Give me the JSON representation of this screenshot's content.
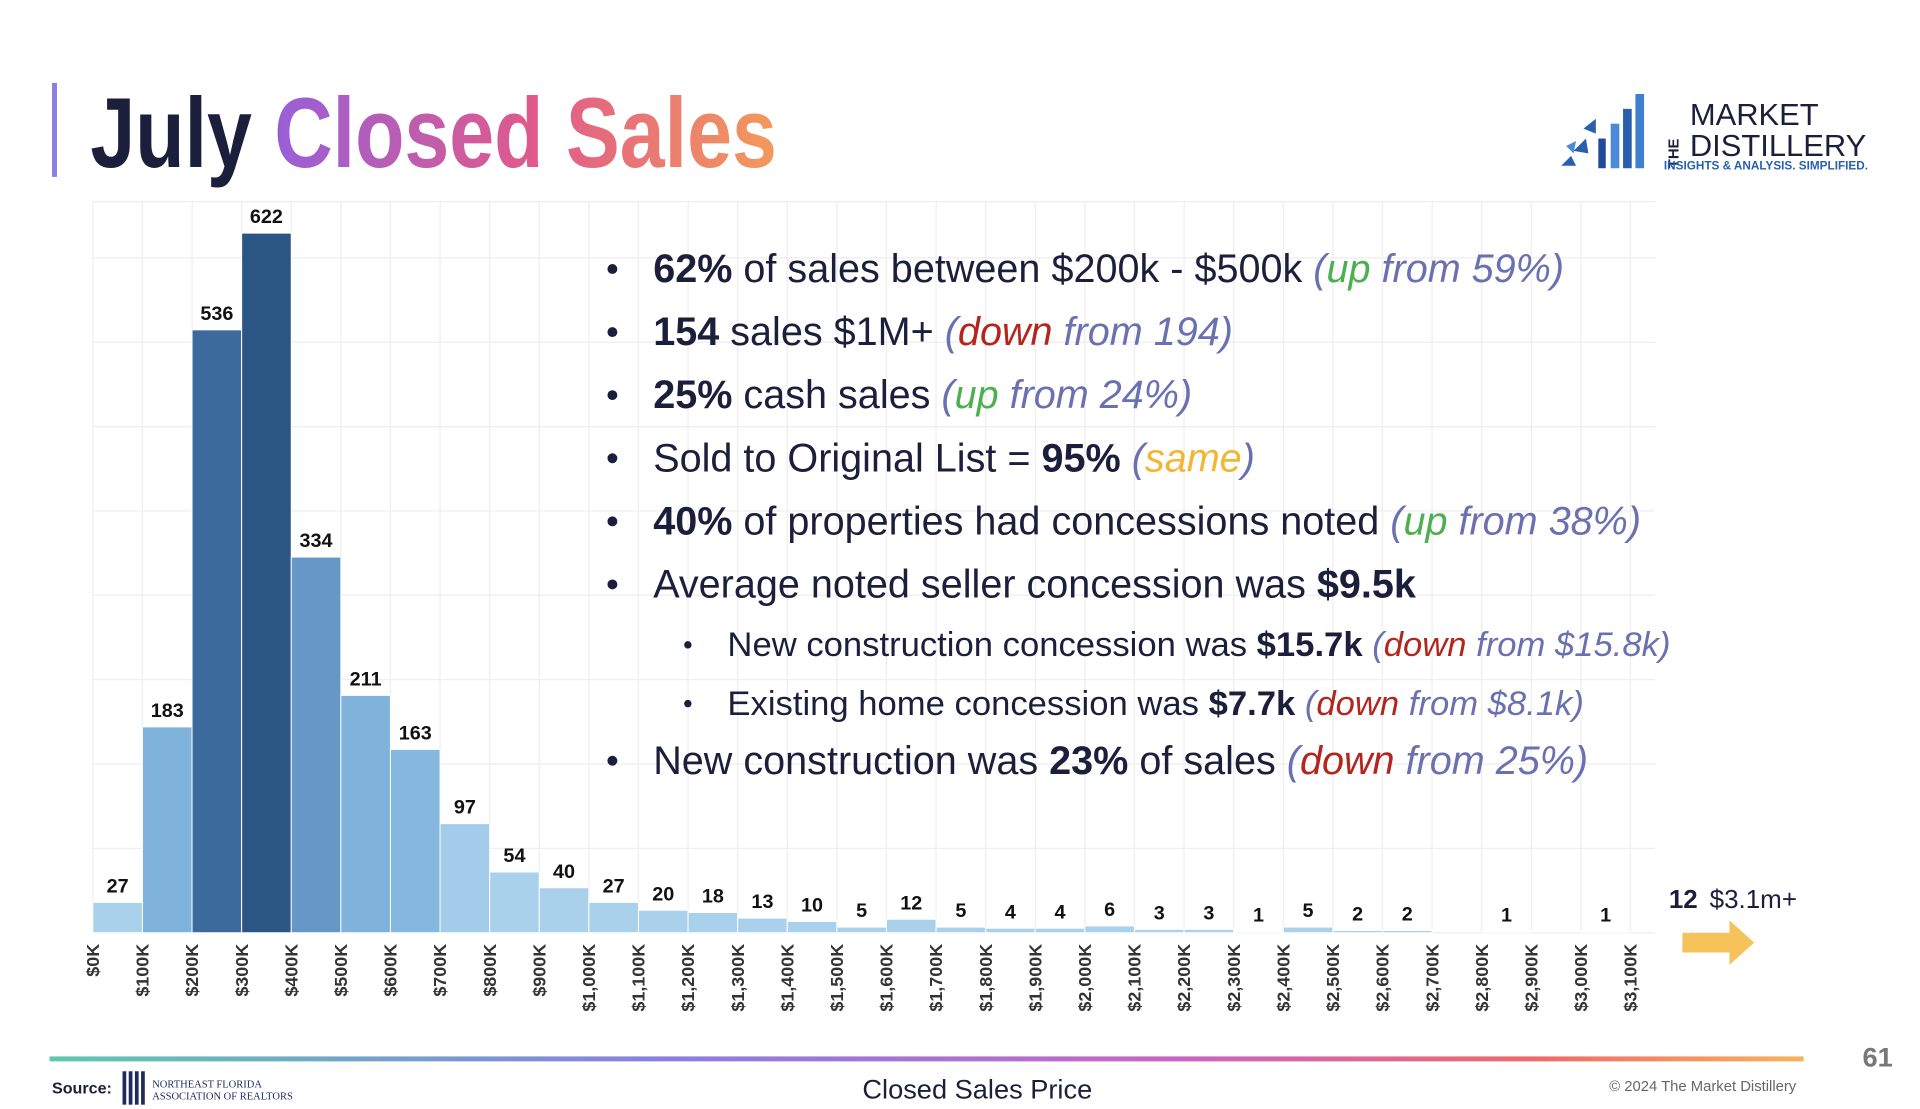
{
  "title": "July Closed Sales",
  "logo": {
    "the": "THE",
    "line1": "MARKET",
    "line2": "DISTILLERY",
    "tagline": "INSIGHTS & ANALYSIS. SIMPLIFIED."
  },
  "chart_data": {
    "type": "histogram",
    "x_label": "Closed Sales Price",
    "bins": [
      0,
      100,
      200,
      300,
      400,
      500,
      600,
      700,
      800,
      900,
      1000,
      1100,
      1200,
      1300,
      1400,
      1500,
      1600,
      1700,
      1800,
      1900,
      2000,
      2100,
      2200,
      2300,
      2400,
      2500,
      2600,
      2700,
      2800,
      2900,
      3000,
      3100
    ],
    "values": [
      27,
      183,
      536,
      622,
      334,
      211,
      163,
      97,
      54,
      40,
      27,
      20,
      18,
      13,
      10,
      5,
      12,
      5,
      4,
      4,
      6,
      3,
      3,
      1,
      5,
      2,
      2,
      0,
      1,
      0,
      1
    ],
    "colors": [
      "#a9d1ec",
      "#7fb3dc",
      "#3d6a9c",
      "#2b5683",
      "#6598c6",
      "#7fb3dc",
      "#86b8df",
      "#a3cceb",
      "#a9d1ec",
      "#a9d1ec",
      "#a9d1ec",
      "#a9d1ec",
      "#a9d1ec",
      "#a9d1ec",
      "#a9d1ec",
      "#a9d1ec",
      "#a9d1ec",
      "#a9d1ec",
      "#a9d1ec",
      "#a9d1ec",
      "#a9d1ec",
      "#a9d1ec",
      "#a9d1ec",
      "#a9d1ec",
      "#a9d1ec",
      "#a9d1ec",
      "#a9d1ec",
      "#a9d1ec",
      "#a9d1ec",
      "#a9d1ec",
      "#a9d1ec"
    ],
    "xlim": [
      0,
      3100
    ],
    "xticks": [
      {
        "value": 0,
        "label": "$0K"
      },
      {
        "value": 100,
        "label": "$100K"
      },
      {
        "value": 200,
        "label": "$200K"
      },
      {
        "value": 300,
        "label": "$300K"
      },
      {
        "value": 400,
        "label": "$400K"
      },
      {
        "value": 500,
        "label": "$500K"
      },
      {
        "value": 600,
        "label": "$600K"
      },
      {
        "value": 700,
        "label": "$700K"
      },
      {
        "value": 800,
        "label": "$800K"
      },
      {
        "value": 900,
        "label": "$900K"
      },
      {
        "value": 1000,
        "label": "$1,000K"
      },
      {
        "value": 1100,
        "label": "$1,100K"
      },
      {
        "value": 1200,
        "label": "$1,200K"
      },
      {
        "value": 1300,
        "label": "$1,300K"
      },
      {
        "value": 1400,
        "label": "$1,400K"
      },
      {
        "value": 1500,
        "label": "$1,500K"
      },
      {
        "value": 1600,
        "label": "$1,600K"
      },
      {
        "value": 1700,
        "label": "$1,700K"
      },
      {
        "value": 1800,
        "label": "$1,800K"
      },
      {
        "value": 1900,
        "label": "$1,900K"
      },
      {
        "value": 2000,
        "label": "$2,000K"
      },
      {
        "value": 2100,
        "label": "$2,100K"
      },
      {
        "value": 2200,
        "label": "$2,200K"
      },
      {
        "value": 2300,
        "label": "$2,300K"
      },
      {
        "value": 2400,
        "label": "$2,400K"
      },
      {
        "value": 2500,
        "label": "$2,500K"
      },
      {
        "value": 2600,
        "label": "$2,600K"
      },
      {
        "value": 2700,
        "label": "$2,700K"
      },
      {
        "value": 2800,
        "label": "$2,800K"
      },
      {
        "value": 2900,
        "label": "$2,900K"
      },
      {
        "value": 3000,
        "label": "$3,000K"
      },
      {
        "value": 3100,
        "label": "$3,100K"
      }
    ],
    "ylim": [
      0,
      650
    ],
    "yticks": [
      0,
      75,
      150,
      225,
      300,
      375,
      450,
      525,
      600
    ],
    "grid": true,
    "overflow": {
      "count": 12,
      "label": "$3.1m+"
    }
  },
  "bullets": [
    {
      "level": 1,
      "runs": [
        {
          "text": "62%",
          "style": "bold"
        },
        {
          "text": " of sales between $200k - $500k ",
          "style": "plain"
        },
        {
          "text": "(",
          "style": "note"
        },
        {
          "text": "up",
          "style": "up"
        },
        {
          "text": " from 59%)",
          "style": "note"
        }
      ]
    },
    {
      "level": 1,
      "runs": [
        {
          "text": "154",
          "style": "bold"
        },
        {
          "text": " sales $1M+ ",
          "style": "plain"
        },
        {
          "text": "(",
          "style": "note"
        },
        {
          "text": "down",
          "style": "down"
        },
        {
          "text": " from 194)",
          "style": "note"
        }
      ]
    },
    {
      "level": 1,
      "runs": [
        {
          "text": "25%",
          "style": "bold"
        },
        {
          "text": " cash sales ",
          "style": "plain"
        },
        {
          "text": "(",
          "style": "note"
        },
        {
          "text": "up",
          "style": "up"
        },
        {
          "text": " from 24%)",
          "style": "note"
        }
      ]
    },
    {
      "level": 1,
      "runs": [
        {
          "text": "Sold to Original List = ",
          "style": "plain"
        },
        {
          "text": "95%",
          "style": "bold"
        },
        {
          "text": " ",
          "style": "plain"
        },
        {
          "text": "(",
          "style": "note"
        },
        {
          "text": "same",
          "style": "same"
        },
        {
          "text": ")",
          "style": "note"
        }
      ]
    },
    {
      "level": 1,
      "runs": [
        {
          "text": "40%",
          "style": "bold"
        },
        {
          "text": " of properties had concessions noted ",
          "style": "plain"
        },
        {
          "text": "(",
          "style": "note"
        },
        {
          "text": "up",
          "style": "up"
        },
        {
          "text": " from 38%)",
          "style": "note"
        }
      ]
    },
    {
      "level": 1,
      "runs": [
        {
          "text": "Average noted seller concession was ",
          "style": "plain"
        },
        {
          "text": "$9.5k",
          "style": "bold"
        }
      ]
    },
    {
      "level": 2,
      "runs": [
        {
          "text": "New construction concession was ",
          "style": "plain"
        },
        {
          "text": "$15.7k",
          "style": "bold"
        },
        {
          "text": " ",
          "style": "plain"
        },
        {
          "text": "(",
          "style": "note"
        },
        {
          "text": "down",
          "style": "down"
        },
        {
          "text": " from $15.8k)",
          "style": "note"
        }
      ]
    },
    {
      "level": 2,
      "runs": [
        {
          "text": "Existing home concession was ",
          "style": "plain"
        },
        {
          "text": "$7.7k",
          "style": "bold"
        },
        {
          "text": " ",
          "style": "plain"
        },
        {
          "text": "(",
          "style": "note"
        },
        {
          "text": "down",
          "style": "down"
        },
        {
          "text": " from $8.1k)",
          "style": "note"
        }
      ]
    },
    {
      "level": 1,
      "runs": [
        {
          "text": "New construction was ",
          "style": "plain"
        },
        {
          "text": "23%",
          "style": "bold"
        },
        {
          "text": " of sales ",
          "style": "plain"
        },
        {
          "text": "(",
          "style": "note"
        },
        {
          "text": "down",
          "style": "down"
        },
        {
          "text": " from 25%)",
          "style": "note"
        }
      ]
    }
  ],
  "footer": {
    "source": "Source:",
    "org1": "NORTHEAST FLORIDA",
    "org2": "ASSOCIATION OF REALTORS",
    "copyright": "© 2024 The Market Distillery",
    "page": "61"
  }
}
